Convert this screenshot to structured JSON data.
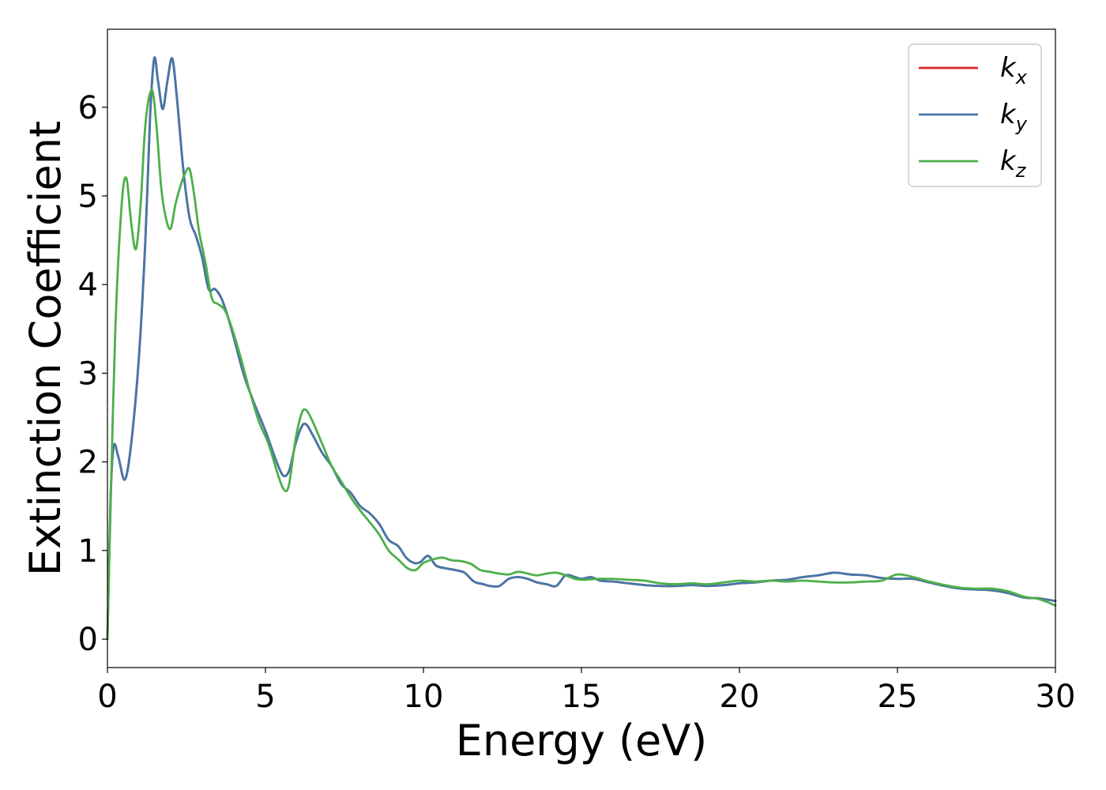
{
  "chart_data": {
    "type": "line",
    "xlabel": "Energy (eV)",
    "ylabel": "Extinction Coefficient",
    "xlim": [
      0,
      30
    ],
    "ylim": [
      -0.32,
      6.88
    ],
    "xticks": [
      0,
      5,
      10,
      15,
      20,
      25,
      30
    ],
    "yticks": [
      0,
      1,
      2,
      3,
      4,
      5,
      6
    ],
    "grid": false,
    "legend_position": "top-right",
    "series": [
      {
        "name": "x",
        "label_main": "k",
        "label_sub": "x",
        "color": "#d62728",
        "x": [
          0,
          0.1,
          0.2,
          0.35,
          0.55,
          0.75,
          1.0,
          1.2,
          1.35,
          1.48,
          1.6,
          1.75,
          1.9,
          2.05,
          2.2,
          2.4,
          2.6,
          2.8,
          3.0,
          3.2,
          3.4,
          3.6,
          3.8,
          4.0,
          4.3,
          4.6,
          5.0,
          5.3,
          5.55,
          5.75,
          5.95,
          6.15,
          6.3,
          6.5,
          6.8,
          7.1,
          7.4,
          7.7,
          8.0,
          8.3,
          8.6,
          8.9,
          9.2,
          9.45,
          9.7,
          9.9,
          10.15,
          10.4,
          10.7,
          11.0,
          11.3,
          11.6,
          11.9,
          12.1,
          12.4,
          12.7,
          13.0,
          13.3,
          13.6,
          13.9,
          14.2,
          14.5,
          14.8,
          15.0,
          15.3,
          15.6,
          16.0,
          16.5,
          17.0,
          17.5,
          18.0,
          18.5,
          19.0,
          19.5,
          20.0,
          20.5,
          21.0,
          21.5,
          22.0,
          22.5,
          23.0,
          23.5,
          24.0,
          24.5,
          25.0,
          25.5,
          26.0,
          26.5,
          27.0,
          27.5,
          28.0,
          28.5,
          29.0,
          29.5,
          30.0
        ],
        "y": [
          0,
          1.6,
          2.18,
          2.05,
          1.8,
          2.2,
          3.2,
          4.5,
          5.9,
          6.55,
          6.3,
          5.98,
          6.3,
          6.55,
          6.1,
          5.3,
          4.75,
          4.55,
          4.3,
          3.95,
          3.95,
          3.85,
          3.65,
          3.4,
          3.0,
          2.7,
          2.35,
          2.05,
          1.85,
          1.9,
          2.2,
          2.4,
          2.42,
          2.3,
          2.1,
          1.95,
          1.75,
          1.65,
          1.5,
          1.42,
          1.3,
          1.12,
          1.05,
          0.92,
          0.86,
          0.87,
          0.94,
          0.83,
          0.8,
          0.78,
          0.75,
          0.65,
          0.62,
          0.6,
          0.6,
          0.68,
          0.7,
          0.68,
          0.64,
          0.62,
          0.6,
          0.72,
          0.7,
          0.68,
          0.7,
          0.66,
          0.65,
          0.63,
          0.61,
          0.6,
          0.6,
          0.61,
          0.6,
          0.61,
          0.63,
          0.64,
          0.66,
          0.67,
          0.7,
          0.72,
          0.75,
          0.73,
          0.72,
          0.69,
          0.68,
          0.68,
          0.64,
          0.6,
          0.57,
          0.56,
          0.55,
          0.52,
          0.47,
          0.46,
          0.43
        ]
      },
      {
        "name": "y",
        "label_main": "k",
        "label_sub": "y",
        "color": "#4477aa",
        "x": [
          0,
          0.1,
          0.2,
          0.35,
          0.55,
          0.75,
          1.0,
          1.2,
          1.35,
          1.48,
          1.6,
          1.75,
          1.9,
          2.05,
          2.2,
          2.4,
          2.6,
          2.8,
          3.0,
          3.2,
          3.4,
          3.6,
          3.8,
          4.0,
          4.3,
          4.6,
          5.0,
          5.3,
          5.55,
          5.75,
          5.95,
          6.15,
          6.3,
          6.5,
          6.8,
          7.1,
          7.4,
          7.7,
          8.0,
          8.3,
          8.6,
          8.9,
          9.2,
          9.45,
          9.7,
          9.9,
          10.15,
          10.4,
          10.7,
          11.0,
          11.3,
          11.6,
          11.9,
          12.1,
          12.4,
          12.7,
          13.0,
          13.3,
          13.6,
          13.9,
          14.2,
          14.5,
          14.8,
          15.0,
          15.3,
          15.6,
          16.0,
          16.5,
          17.0,
          17.5,
          18.0,
          18.5,
          19.0,
          19.5,
          20.0,
          20.5,
          21.0,
          21.5,
          22.0,
          22.5,
          23.0,
          23.5,
          24.0,
          24.5,
          25.0,
          25.5,
          26.0,
          26.5,
          27.0,
          27.5,
          28.0,
          28.5,
          29.0,
          29.5,
          30.0
        ],
        "y": [
          0,
          1.6,
          2.18,
          2.05,
          1.8,
          2.2,
          3.2,
          4.5,
          5.9,
          6.55,
          6.3,
          5.98,
          6.3,
          6.55,
          6.1,
          5.3,
          4.75,
          4.55,
          4.3,
          3.95,
          3.95,
          3.85,
          3.65,
          3.4,
          3.0,
          2.7,
          2.35,
          2.05,
          1.85,
          1.9,
          2.2,
          2.4,
          2.42,
          2.3,
          2.1,
          1.95,
          1.75,
          1.65,
          1.5,
          1.42,
          1.3,
          1.12,
          1.05,
          0.92,
          0.86,
          0.87,
          0.94,
          0.83,
          0.8,
          0.78,
          0.75,
          0.65,
          0.62,
          0.6,
          0.6,
          0.68,
          0.7,
          0.68,
          0.64,
          0.62,
          0.6,
          0.72,
          0.7,
          0.68,
          0.7,
          0.66,
          0.65,
          0.63,
          0.61,
          0.6,
          0.6,
          0.61,
          0.6,
          0.61,
          0.63,
          0.64,
          0.66,
          0.67,
          0.7,
          0.72,
          0.75,
          0.73,
          0.72,
          0.69,
          0.68,
          0.68,
          0.64,
          0.6,
          0.57,
          0.56,
          0.55,
          0.52,
          0.47,
          0.46,
          0.43
        ]
      },
      {
        "name": "z",
        "label_main": "k",
        "label_sub": "z",
        "color": "#4daf4a",
        "x": [
          0,
          0.1,
          0.25,
          0.45,
          0.6,
          0.75,
          0.9,
          1.05,
          1.2,
          1.4,
          1.55,
          1.7,
          1.85,
          2.0,
          2.15,
          2.3,
          2.45,
          2.6,
          2.75,
          2.9,
          3.1,
          3.3,
          3.5,
          3.7,
          3.9,
          4.2,
          4.5,
          4.8,
          5.1,
          5.4,
          5.6,
          5.75,
          5.95,
          6.15,
          6.3,
          6.5,
          6.8,
          7.1,
          7.4,
          7.7,
          8.0,
          8.3,
          8.6,
          8.9,
          9.2,
          9.5,
          9.75,
          10.0,
          10.3,
          10.6,
          10.9,
          11.2,
          11.5,
          11.8,
          12.1,
          12.4,
          12.7,
          13.0,
          13.3,
          13.6,
          13.9,
          14.2,
          14.5,
          14.8,
          15.1,
          15.5,
          16.0,
          16.5,
          17.0,
          17.5,
          18.0,
          18.5,
          19.0,
          19.5,
          20.0,
          20.5,
          21.0,
          21.5,
          22.0,
          22.5,
          23.0,
          23.5,
          24.0,
          24.5,
          25.0,
          25.5,
          26.0,
          26.5,
          27.0,
          27.5,
          28.0,
          28.5,
          29.0,
          29.5,
          30.0
        ],
        "y": [
          0,
          1.5,
          3.5,
          4.9,
          5.2,
          4.7,
          4.4,
          4.9,
          5.8,
          6.2,
          5.8,
          5.1,
          4.75,
          4.63,
          4.9,
          5.1,
          5.25,
          5.3,
          5.0,
          4.6,
          4.25,
          3.85,
          3.78,
          3.72,
          3.55,
          3.2,
          2.8,
          2.45,
          2.2,
          1.85,
          1.68,
          1.75,
          2.25,
          2.55,
          2.58,
          2.45,
          2.2,
          1.95,
          1.78,
          1.6,
          1.45,
          1.32,
          1.18,
          1.0,
          0.9,
          0.8,
          0.78,
          0.86,
          0.9,
          0.92,
          0.89,
          0.88,
          0.85,
          0.78,
          0.76,
          0.74,
          0.73,
          0.76,
          0.74,
          0.72,
          0.74,
          0.75,
          0.72,
          0.68,
          0.67,
          0.68,
          0.68,
          0.67,
          0.66,
          0.63,
          0.62,
          0.63,
          0.62,
          0.64,
          0.66,
          0.65,
          0.66,
          0.65,
          0.66,
          0.65,
          0.64,
          0.64,
          0.65,
          0.66,
          0.73,
          0.7,
          0.65,
          0.61,
          0.58,
          0.57,
          0.57,
          0.54,
          0.48,
          0.45,
          0.38
        ]
      }
    ]
  }
}
